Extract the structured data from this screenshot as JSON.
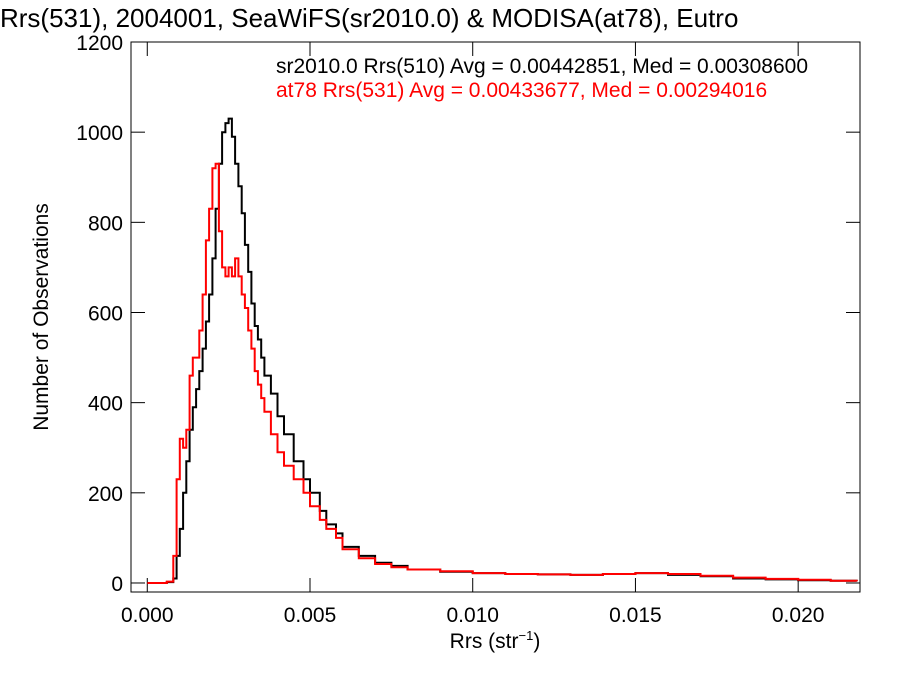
{
  "chart_data": {
    "type": "line",
    "title": "Rrs(531), 2004001, SeaWiFS(sr2010.0) & MODISA(at78), Eutro",
    "xlabel_main": "Rrs (str",
    "xlabel_sup": "−1",
    "xlabel_close": ")",
    "ylabel": "Number of Observations",
    "xlim": [
      -0.0005,
      0.0219
    ],
    "ylim": [
      -20,
      1200
    ],
    "x_ticks": [
      0.0,
      0.005,
      0.01,
      0.015,
      0.02
    ],
    "x_tick_labels": [
      "0.000",
      "0.005",
      "0.010",
      "0.015",
      "0.020"
    ],
    "y_ticks": [
      0,
      200,
      400,
      600,
      800,
      1000,
      1200
    ],
    "y_tick_labels": [
      "0",
      "200",
      "400",
      "600",
      "800",
      "1000",
      "1200"
    ],
    "grid": false,
    "legend_position": "top",
    "annotations": [
      "sr2010.0 Rrs(510) Avg = 0.00442851, Med = 0.00308600",
      "at78 Rrs(531) Avg = 0.00433677, Med = 0.00294016"
    ],
    "series": [
      {
        "color": "#000000",
        "x": [
          0.0,
          0.0004,
          0.0006,
          0.0008,
          0.0009,
          0.001,
          0.0011,
          0.0012,
          0.0013,
          0.0014,
          0.0015,
          0.0016,
          0.0017,
          0.0018,
          0.0019,
          0.002,
          0.0021,
          0.0022,
          0.0023,
          0.0024,
          0.0025,
          0.0026,
          0.0027,
          0.0028,
          0.0029,
          0.003,
          0.0031,
          0.0032,
          0.0033,
          0.0034,
          0.0035,
          0.0036,
          0.0038,
          0.004,
          0.0042,
          0.0045,
          0.0048,
          0.005,
          0.0053,
          0.0055,
          0.0058,
          0.006,
          0.0065,
          0.007,
          0.0075,
          0.008,
          0.009,
          0.01,
          0.011,
          0.012,
          0.013,
          0.014,
          0.015,
          0.016,
          0.017,
          0.018,
          0.019,
          0.02,
          0.021,
          0.0218
        ],
        "y": [
          0,
          0,
          2,
          10,
          60,
          120,
          200,
          270,
          340,
          390,
          430,
          470,
          520,
          580,
          640,
          720,
          830,
          930,
          1000,
          1020,
          1030,
          990,
          930,
          880,
          820,
          750,
          690,
          620,
          570,
          540,
          500,
          460,
          420,
          370,
          330,
          270,
          230,
          200,
          160,
          130,
          110,
          80,
          60,
          45,
          38,
          30,
          25,
          22,
          20,
          19,
          18,
          20,
          22,
          18,
          15,
          10,
          8,
          6,
          5,
          4
        ]
      },
      {
        "color": "#ff0000",
        "x": [
          0.0,
          0.0004,
          0.0006,
          0.0008,
          0.0009,
          0.001,
          0.0011,
          0.0012,
          0.0013,
          0.0014,
          0.0015,
          0.0016,
          0.0017,
          0.0018,
          0.0019,
          0.002,
          0.0021,
          0.0022,
          0.0023,
          0.0024,
          0.0025,
          0.0026,
          0.0027,
          0.0028,
          0.0029,
          0.003,
          0.0031,
          0.0032,
          0.0033,
          0.0034,
          0.0035,
          0.0036,
          0.0038,
          0.004,
          0.0042,
          0.0045,
          0.0048,
          0.005,
          0.0053,
          0.0055,
          0.0058,
          0.006,
          0.0065,
          0.007,
          0.0075,
          0.008,
          0.009,
          0.01,
          0.011,
          0.012,
          0.013,
          0.014,
          0.015,
          0.016,
          0.017,
          0.018,
          0.019,
          0.02,
          0.021,
          0.0218
        ],
        "y": [
          0,
          0,
          3,
          60,
          230,
          320,
          300,
          340,
          460,
          500,
          500,
          560,
          640,
          760,
          830,
          920,
          930,
          780,
          700,
          680,
          700,
          680,
          720,
          680,
          640,
          610,
          560,
          520,
          470,
          440,
          410,
          380,
          330,
          290,
          260,
          230,
          200,
          170,
          140,
          120,
          100,
          75,
          55,
          42,
          35,
          30,
          26,
          22,
          20,
          19,
          18,
          20,
          22,
          20,
          16,
          12,
          9,
          7,
          5,
          4
        ]
      }
    ]
  }
}
